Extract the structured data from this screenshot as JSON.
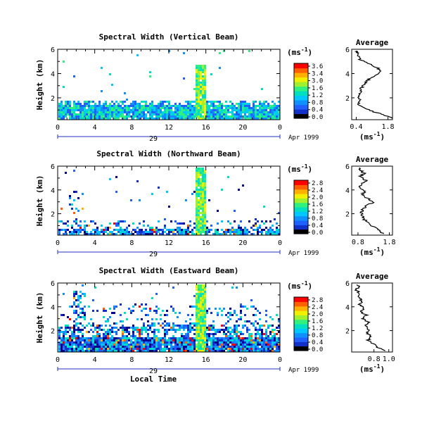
{
  "chart_data": [
    {
      "type": "heatmap",
      "title": "Spectral Width (Vertical Beam)",
      "ylabel": "Height (km)",
      "xlabel": "",
      "x_ticks": [
        "0",
        "4",
        "8",
        "12",
        "16",
        "20",
        "0"
      ],
      "y_ticks": [
        "2",
        "4",
        "6"
      ],
      "xlim": [
        0,
        24
      ],
      "ylim": [
        0.2,
        6
      ],
      "colorbar": {
        "unit": "(ms",
        "exp": "-1",
        "unit_end": ")",
        "ticks": [
          "3.6",
          "3.4",
          "3.0",
          "1.6",
          "1.2",
          "0.8",
          "0.4",
          "0.0"
        ]
      },
      "day_label": "29",
      "date_label": "Apr 1999",
      "average": {
        "title": "Average",
        "xlabel": "(ms",
        "x_ticks": [
          "0.4",
          "1.8"
        ],
        "xlim": [
          0.2,
          2.0
        ],
        "y_ticks": [
          "2",
          "4",
          "6"
        ],
        "profile": [
          [
            0.3,
            2.0
          ],
          [
            0.6,
            1.6
          ],
          [
            0.9,
            1.1
          ],
          [
            1.2,
            0.7
          ],
          [
            1.5,
            0.5
          ],
          [
            1.8,
            0.6
          ],
          [
            2.1,
            0.5
          ],
          [
            2.4,
            0.55
          ],
          [
            2.7,
            0.6
          ],
          [
            3.0,
            0.7
          ],
          [
            3.3,
            0.8
          ],
          [
            3.6,
            1.0
          ],
          [
            3.9,
            1.25
          ],
          [
            4.2,
            1.5
          ],
          [
            4.5,
            1.3
          ],
          [
            4.8,
            1.0
          ],
          [
            5.1,
            0.6
          ],
          [
            5.4,
            0.5
          ],
          [
            5.7,
            0.45
          ],
          [
            5.9,
            0.4
          ]
        ]
      }
    },
    {
      "type": "heatmap",
      "title": "Spectral Width (Northward Beam)",
      "ylabel": "Height (km)",
      "xlabel": "",
      "x_ticks": [
        "0",
        "4",
        "8",
        "12",
        "16",
        "20",
        "0"
      ],
      "y_ticks": [
        "2",
        "4",
        "6"
      ],
      "xlim": [
        0,
        24
      ],
      "ylim": [
        0.2,
        6
      ],
      "colorbar": {
        "unit": "(ms",
        "exp": "-1",
        "unit_end": ")",
        "ticks": [
          "2.8",
          "2.4",
          "2.0",
          "1.6",
          "1.2",
          "0.8",
          "0.4",
          "0.0"
        ]
      },
      "day_label": "29",
      "date_label": "Apr 1999",
      "average": {
        "title": "Average",
        "xlabel": "(ms",
        "x_ticks": [
          "0.8",
          "1.8"
        ],
        "xlim": [
          0.6,
          1.9
        ],
        "y_ticks": [
          "2",
          "4",
          "6"
        ],
        "profile": [
          [
            0.3,
            1.6
          ],
          [
            0.6,
            1.45
          ],
          [
            0.9,
            1.3
          ],
          [
            1.2,
            1.15
          ],
          [
            1.5,
            1.0
          ],
          [
            1.8,
            0.95
          ],
          [
            2.1,
            0.9
          ],
          [
            2.4,
            0.95
          ],
          [
            2.7,
            1.1
          ],
          [
            3.0,
            1.3
          ],
          [
            3.3,
            1.1
          ],
          [
            3.6,
            0.95
          ],
          [
            3.9,
            1.0
          ],
          [
            4.2,
            0.85
          ],
          [
            4.5,
            0.9
          ],
          [
            4.8,
            1.05
          ],
          [
            5.1,
            0.85
          ],
          [
            5.4,
            1.0
          ],
          [
            5.7,
            0.85
          ],
          [
            5.9,
            0.9
          ]
        ]
      }
    },
    {
      "type": "heatmap",
      "title": "Spectral Width (Eastward Beam)",
      "ylabel": "Height (km)",
      "xlabel": "Local Time",
      "x_ticks": [
        "0",
        "4",
        "8",
        "12",
        "16",
        "20",
        "0"
      ],
      "y_ticks": [
        "2",
        "4",
        "6"
      ],
      "xlim": [
        0,
        24
      ],
      "ylim": [
        0.2,
        6
      ],
      "colorbar": {
        "unit": "(ms",
        "exp": "-1",
        "unit_end": ")",
        "ticks": [
          "2.8",
          "2.4",
          "2.0",
          "1.6",
          "1.2",
          "0.8",
          "0.4",
          "0.0"
        ]
      },
      "day_label": "29",
      "date_label": "Apr 1999",
      "average": {
        "title": "Average",
        "xlabel": "(ms",
        "x_ticks": [
          "0.8",
          "1.0"
        ],
        "xlim": [
          0.5,
          1.05
        ],
        "y_ticks": [
          "2",
          "4",
          "6"
        ],
        "profile": [
          [
            0.3,
            0.95
          ],
          [
            0.6,
            0.85
          ],
          [
            0.9,
            0.78
          ],
          [
            1.2,
            0.72
          ],
          [
            1.5,
            0.76
          ],
          [
            1.8,
            0.7
          ],
          [
            2.1,
            0.73
          ],
          [
            2.4,
            0.68
          ],
          [
            2.7,
            0.72
          ],
          [
            3.0,
            0.66
          ],
          [
            3.3,
            0.7
          ],
          [
            3.6,
            0.62
          ],
          [
            3.9,
            0.68
          ],
          [
            4.2,
            0.6
          ],
          [
            4.5,
            0.64
          ],
          [
            4.8,
            0.58
          ],
          [
            5.1,
            0.62
          ],
          [
            5.4,
            0.56
          ],
          [
            5.7,
            0.6
          ],
          [
            5.9,
            0.57
          ]
        ]
      }
    }
  ]
}
